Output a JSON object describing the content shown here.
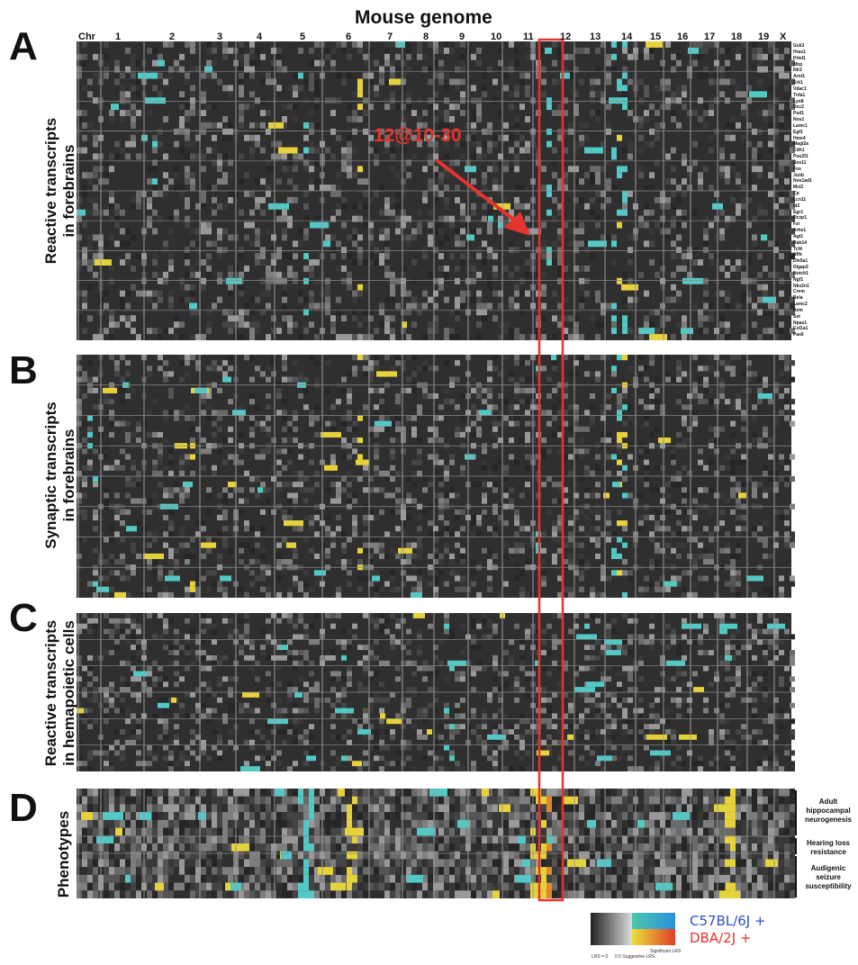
{
  "title": "Mouse genome",
  "chromosomes": [
    "Chr",
    "1",
    "2",
    "3",
    "4",
    "5",
    "6",
    "7",
    "8",
    "9",
    "10",
    "11",
    "12",
    "13",
    "14",
    "15",
    "16",
    "17",
    "18",
    "19",
    "X"
  ],
  "panels": [
    {
      "letter": "A",
      "label_line1": "Reactive transcripts",
      "label_line2": "in forebrains"
    },
    {
      "letter": "B",
      "label_line1": "Synaptic transcripts",
      "label_line2": "in forebrains"
    },
    {
      "letter": "C",
      "label_line1": "Reactive transcripts",
      "label_line2": "in hemapoietic cells"
    },
    {
      "letter": "D",
      "label_line1": "Phenotypes",
      "label_line2": ""
    }
  ],
  "genes": [
    "Gsk3",
    "Hras1",
    "Prkd1",
    "Mbp",
    "Nlr2",
    "Arnt1",
    "Erk1",
    "Vdac1",
    "Tnfa1",
    "Lyn8",
    "Dcc2",
    "Psd1",
    "Nos1",
    "Lamc1",
    "Egf1",
    "Hmx4",
    "Magi2a",
    "Cdh1",
    "Pou2f1",
    "Sox11",
    "Fos",
    "Junb",
    "Nos1ad1",
    "Mcl2",
    "Cp",
    "Lcn11",
    "Id2",
    "Egr1",
    "Dcxp1",
    "Fzr",
    "Arhe1",
    "Agt1",
    "Rab14",
    "Tcf4",
    "Nfib",
    "Dlx5a1",
    "Dlgap3",
    "Notch1",
    "Ngf1",
    "Nkx2n1",
    "Crem",
    "Rela",
    "Lamc2",
    "Reln",
    "Sst",
    "Npas1",
    "Col1a1",
    "Pax6"
  ],
  "phenotypes": [
    {
      "line1": "Adult",
      "line2": "hippocampal",
      "line3": "neurogenesis"
    },
    {
      "line1": "Hearing loss",
      "line2": "resistance",
      "line3": ""
    },
    {
      "line1": "Audigenic",
      "line2": "seizure",
      "line3": "susceptibility"
    }
  ],
  "callout": {
    "text": "12@10-30",
    "color": "#e5342d"
  },
  "legend": {
    "c57": "C57BL/6J +",
    "dba": "DBA/2J +",
    "c57_color": "#2f4fc0",
    "dba_color": "#e5342d",
    "lrs0": "LRS = 0",
    "suggestive": "0.5 Suggestive LRS",
    "significant": "Significant LRS"
  },
  "colors": {
    "background": "#2f2f2f",
    "cyan": "#53c8c4",
    "yellow": "#e6d23a",
    "orange": "#e08a2a",
    "blue": "#3a8ad8",
    "highlight": "#e5342d"
  }
}
